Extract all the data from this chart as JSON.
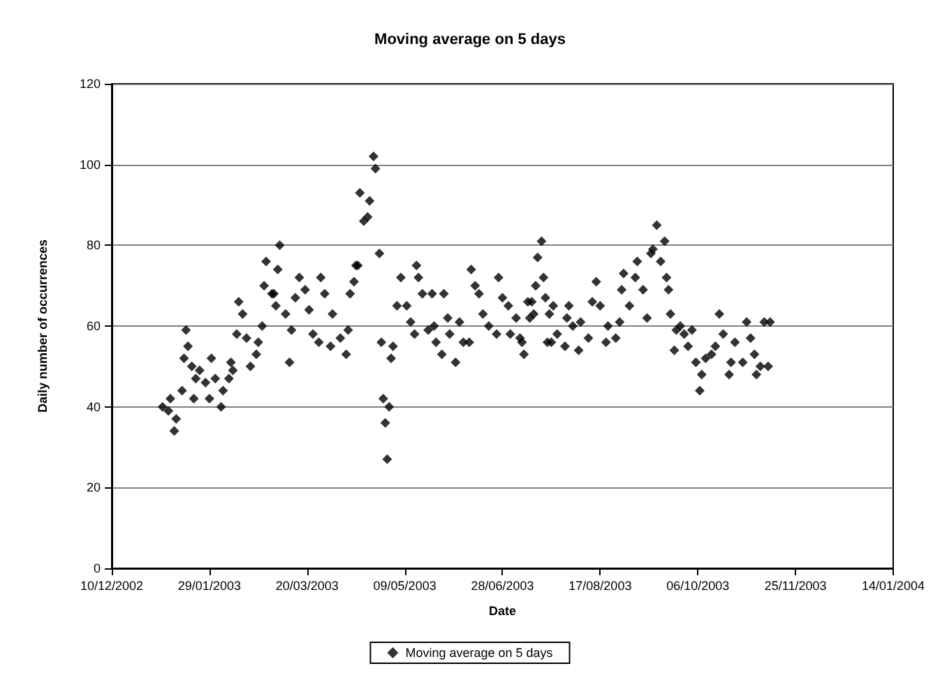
{
  "chart_data": {
    "type": "scatter",
    "title": "Moving average on 5 days",
    "xlabel": "Date",
    "ylabel": "Daily number of occurrences",
    "xlim": [
      "2002-12-10",
      "2004-01-14"
    ],
    "xticks": [
      {
        "value": "2002-12-10",
        "label": "10/12/2002"
      },
      {
        "value": "2003-01-29",
        "label": "29/01/2003"
      },
      {
        "value": "2003-03-20",
        "label": "20/03/2003"
      },
      {
        "value": "2003-05-09",
        "label": "09/05/2003"
      },
      {
        "value": "2003-06-28",
        "label": "28/06/2003"
      },
      {
        "value": "2003-08-17",
        "label": "17/08/2003"
      },
      {
        "value": "2003-10-06",
        "label": "06/10/2003"
      },
      {
        "value": "2003-11-25",
        "label": "25/11/2003"
      },
      {
        "value": "2004-01-14",
        "label": "14/01/2004"
      }
    ],
    "ylim": [
      0,
      120
    ],
    "yticks": [
      0,
      20,
      40,
      60,
      80,
      100,
      120
    ],
    "grid": "y",
    "legend": "bottom",
    "marker": "diamond",
    "series": [
      {
        "name": "Moving average on 5 days",
        "color": "#000000",
        "x": [
          "2003-01-05",
          "2003-01-08",
          "2003-01-09",
          "2003-01-11",
          "2003-01-12",
          "2003-01-15",
          "2003-01-16",
          "2003-01-17",
          "2003-01-18",
          "2003-01-20",
          "2003-01-21",
          "2003-01-22",
          "2003-01-24",
          "2003-01-27",
          "2003-01-29",
          "2003-01-30",
          "2003-02-01",
          "2003-02-04",
          "2003-02-05",
          "2003-02-08",
          "2003-02-09",
          "2003-02-10",
          "2003-02-12",
          "2003-02-13",
          "2003-02-15",
          "2003-02-17",
          "2003-02-19",
          "2003-02-22",
          "2003-02-23",
          "2003-02-25",
          "2003-02-26",
          "2003-02-27",
          "2003-03-02",
          "2003-03-03",
          "2003-03-04",
          "2003-03-05",
          "2003-03-06",
          "2003-03-09",
          "2003-03-11",
          "2003-03-12",
          "2003-03-14",
          "2003-03-16",
          "2003-03-19",
          "2003-03-21",
          "2003-03-23",
          "2003-03-26",
          "2003-03-27",
          "2003-03-29",
          "2003-04-01",
          "2003-04-02",
          "2003-04-06",
          "2003-04-09",
          "2003-04-10",
          "2003-04-11",
          "2003-04-13",
          "2003-04-14",
          "2003-04-15",
          "2003-04-16",
          "2003-04-18",
          "2003-04-20",
          "2003-04-21",
          "2003-04-23",
          "2003-04-24",
          "2003-04-26",
          "2003-04-27",
          "2003-04-28",
          "2003-04-29",
          "2003-04-30",
          "2003-05-01",
          "2003-05-02",
          "2003-05-03",
          "2003-05-05",
          "2003-05-07",
          "2003-05-10",
          "2003-05-12",
          "2003-05-14",
          "2003-05-15",
          "2003-05-16",
          "2003-05-18",
          "2003-05-21",
          "2003-05-23",
          "2003-05-24",
          "2003-05-25",
          "2003-05-28",
          "2003-05-29",
          "2003-05-31",
          "2003-06-01",
          "2003-06-04",
          "2003-06-06",
          "2003-06-08",
          "2003-06-11",
          "2003-06-12",
          "2003-06-14",
          "2003-06-16",
          "2003-06-18",
          "2003-06-21",
          "2003-06-25",
          "2003-06-26",
          "2003-06-28",
          "2003-07-01",
          "2003-07-02",
          "2003-07-05",
          "2003-07-07",
          "2003-07-08",
          "2003-07-09",
          "2003-07-11",
          "2003-07-12",
          "2003-07-13",
          "2003-07-14",
          "2003-07-15",
          "2003-07-16",
          "2003-07-18",
          "2003-07-19",
          "2003-07-20",
          "2003-07-21",
          "2003-07-22",
          "2003-07-23",
          "2003-07-24",
          "2003-07-26",
          "2003-07-30",
          "2003-07-31",
          "2003-08-01",
          "2003-08-03",
          "2003-08-06",
          "2003-08-07",
          "2003-08-11",
          "2003-08-13",
          "2003-08-15",
          "2003-08-17",
          "2003-08-20",
          "2003-08-21",
          "2003-08-25",
          "2003-08-27",
          "2003-08-28",
          "2003-08-29",
          "2003-09-01",
          "2003-09-04",
          "2003-09-05",
          "2003-09-08",
          "2003-09-10",
          "2003-09-12",
          "2003-09-13",
          "2003-09-15",
          "2003-09-17",
          "2003-09-19",
          "2003-09-20",
          "2003-09-21",
          "2003-09-22",
          "2003-09-24",
          "2003-09-25",
          "2003-09-27",
          "2003-09-29",
          "2003-10-01",
          "2003-10-03",
          "2003-10-05",
          "2003-10-07",
          "2003-10-08",
          "2003-10-10",
          "2003-10-13",
          "2003-10-15",
          "2003-10-17",
          "2003-10-19",
          "2003-10-22",
          "2003-10-23",
          "2003-10-25",
          "2003-10-29",
          "2003-10-31",
          "2003-11-02",
          "2003-11-04",
          "2003-11-05",
          "2003-11-07",
          "2003-11-09",
          "2003-11-11",
          "2003-11-12"
        ],
        "values": [
          40,
          39,
          42,
          34,
          37,
          44,
          52,
          59,
          55,
          50,
          42,
          47,
          49,
          46,
          42,
          52,
          47,
          40,
          44,
          47,
          51,
          49,
          58,
          66,
          63,
          57,
          50,
          53,
          56,
          60,
          70,
          76,
          68,
          68,
          65,
          74,
          80,
          63,
          51,
          59,
          67,
          72,
          69,
          64,
          58,
          56,
          72,
          68,
          55,
          63,
          57,
          53,
          59,
          68,
          71,
          75,
          75,
          93,
          86,
          87,
          91,
          102,
          99,
          78,
          56,
          42,
          36,
          27,
          40,
          52,
          55,
          65,
          72,
          65,
          61,
          58,
          75,
          72,
          68,
          59,
          68,
          60,
          56,
          53,
          68,
          62,
          58,
          51,
          61,
          56,
          56,
          74,
          70,
          68,
          63,
          60,
          58,
          72,
          67,
          65,
          58,
          62,
          57,
          56,
          53,
          66,
          62,
          66,
          63,
          70,
          77,
          81,
          72,
          67,
          56,
          63,
          56,
          65,
          58,
          55,
          62,
          65,
          60,
          54,
          61,
          57,
          66,
          71,
          65,
          56,
          60,
          57,
          61,
          69,
          73,
          65,
          72,
          76,
          69,
          62,
          78,
          79,
          85,
          76,
          81,
          72,
          69,
          63,
          54,
          59,
          60,
          58,
          55,
          59,
          51,
          44,
          48,
          52,
          53,
          55,
          63,
          58,
          48,
          51,
          56,
          51,
          61,
          57,
          53,
          48,
          50,
          61,
          50,
          61
        ]
      }
    ]
  }
}
